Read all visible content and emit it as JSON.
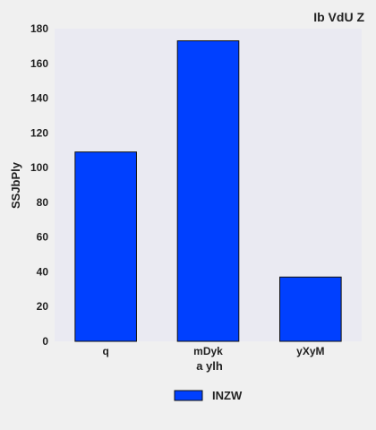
{
  "chart_data": {
    "type": "bar",
    "title": "Ib VdU Z",
    "xlabel": "a ylh",
    "ylabel": "SSJbPly",
    "categories": [
      "q",
      "mDyk",
      "yXyM"
    ],
    "series": [
      {
        "name": "INZW",
        "values": [
          109,
          173,
          37
        ],
        "color": "#0040ff"
      }
    ],
    "ylim": [
      0,
      180
    ],
    "yticks": [
      0,
      20,
      40,
      60,
      80,
      100,
      120,
      140,
      160,
      180
    ],
    "grid": false,
    "legend_position": "bottom-center",
    "plot_background": "#eaeaf2",
    "bar_edge_color": "#111111"
  }
}
